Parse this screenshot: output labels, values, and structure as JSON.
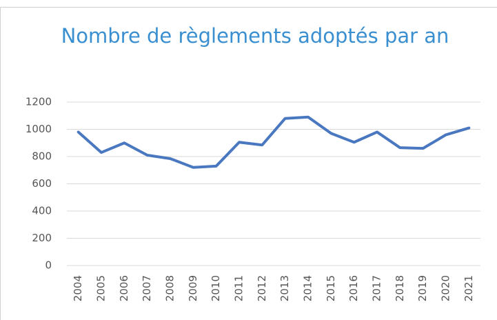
{
  "chart_data": {
    "type": "line",
    "title": "Nombre de règlements adoptés par an",
    "categories": [
      "2004",
      "2005",
      "2006",
      "2007",
      "2008",
      "2009",
      "2010",
      "2011",
      "2012",
      "2013",
      "2014",
      "2015",
      "2016",
      "2017",
      "2018",
      "2019",
      "2020",
      "2021"
    ],
    "series": [
      {
        "name": "Nombre de règlements",
        "color": "#4a78c0",
        "values": [
          980,
          830,
          900,
          810,
          785,
          720,
          730,
          905,
          885,
          1080,
          1090,
          970,
          905,
          980,
          865,
          860,
          960,
          1010
        ]
      }
    ],
    "ylim": [
      0,
      1200
    ],
    "yticks": [
      0,
      200,
      400,
      600,
      800,
      1000,
      1200
    ],
    "grid": true
  }
}
